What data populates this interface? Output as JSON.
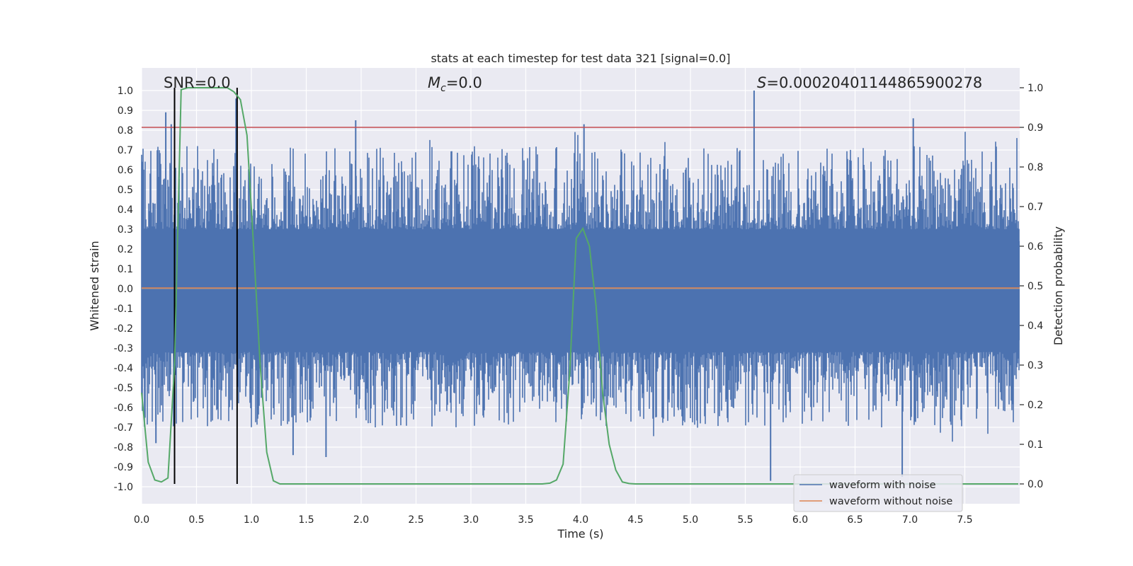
{
  "chart_data": {
    "type": "line",
    "title": "stats at each timestep for test data 321 [signal=0.0]",
    "xlabel": "Time (s)",
    "ylabel": "Whitened strain",
    "y2label": "Detection probability",
    "xlim": [
      0.0,
      8.0
    ],
    "ylim": [
      -1.08,
      1.08
    ],
    "y2lim": [
      -0.05,
      1.05
    ],
    "x_ticks": [
      "0.0",
      "0.5",
      "1.0",
      "1.5",
      "2.0",
      "2.5",
      "3.0",
      "3.5",
      "4.0",
      "4.5",
      "5.0",
      "5.5",
      "6.0",
      "6.5",
      "7.0",
      "7.5"
    ],
    "y_ticks": [
      "1.0",
      "0.9",
      "0.8",
      "0.7",
      "0.6",
      "0.5",
      "0.4",
      "0.3",
      "0.2",
      "0.1",
      "0.0",
      "-0.1",
      "-0.2",
      "-0.3",
      "-0.4",
      "-0.5",
      "-0.6",
      "-0.7",
      "-0.8",
      "-0.9",
      "-1.0"
    ],
    "y2_ticks": [
      "1.0",
      "0.9",
      "0.8",
      "0.7",
      "0.6",
      "0.5",
      "0.4",
      "0.3",
      "0.2",
      "0.1",
      "0.0"
    ],
    "annotations": {
      "snr": "SNR=0.0",
      "mc_symbol": "M",
      "mc_sub": "c",
      "mc_value": "=0.0",
      "s_symbol": "S",
      "s_value": "=0.00020401144865900278"
    },
    "threshold": {
      "value": 0.9,
      "axis": "y2",
      "color": "#c44e52"
    },
    "vlines": [
      0.3,
      0.87
    ],
    "legend": {
      "position": "lower-right",
      "entries": [
        {
          "label": "waveform with noise",
          "color": "#4c72b0"
        },
        {
          "label": "waveform without noise",
          "color": "#dd8452"
        }
      ]
    },
    "series": [
      {
        "name": "waveform with noise",
        "color": "#4c72b0",
        "axis": "y",
        "description": "dense whitened noise oscillating roughly between -0.95 and 0.97",
        "peaks_top": [
          [
            0.22,
            0.89
          ],
          [
            0.27,
            0.83
          ],
          [
            0.86,
            0.96
          ],
          [
            1.95,
            0.85
          ],
          [
            4.03,
            0.83
          ],
          [
            5.58,
            1.0
          ],
          [
            7.03,
            0.86
          ]
        ],
        "peaks_bottom": [
          [
            0.13,
            -0.78
          ],
          [
            1.38,
            -0.84
          ],
          [
            1.68,
            -0.85
          ],
          [
            5.73,
            -0.97
          ],
          [
            6.93,
            -0.95
          ]
        ]
      },
      {
        "name": "waveform without noise",
        "color": "#dd8452",
        "axis": "y",
        "value": 0.0
      },
      {
        "name": "detection probability",
        "color": "#55a868",
        "axis": "y2",
        "x": [
          0.0,
          0.06,
          0.12,
          0.18,
          0.24,
          0.3,
          0.36,
          0.42,
          0.48,
          0.55,
          0.62,
          0.7,
          0.78,
          0.84,
          0.9,
          0.96,
          1.02,
          1.08,
          1.14,
          1.2,
          1.26,
          1.5,
          2.0,
          2.5,
          3.0,
          3.5,
          3.65,
          3.72,
          3.78,
          3.84,
          3.9,
          3.96,
          4.02,
          4.08,
          4.14,
          4.2,
          4.26,
          4.32,
          4.38,
          4.44,
          4.5,
          5.0,
          6.0,
          7.0,
          8.0
        ],
        "y": [
          0.23,
          0.055,
          0.01,
          0.005,
          0.015,
          0.3,
          0.995,
          1.0,
          1.0,
          1.0,
          1.0,
          1.0,
          1.0,
          0.99,
          0.97,
          0.88,
          0.6,
          0.3,
          0.08,
          0.008,
          0.0,
          0.0,
          0.0,
          0.0,
          0.0,
          0.0,
          0.0,
          0.002,
          0.01,
          0.05,
          0.28,
          0.62,
          0.645,
          0.6,
          0.45,
          0.23,
          0.1,
          0.035,
          0.005,
          0.001,
          0.0,
          0.0,
          0.0,
          0.0,
          0.0
        ]
      }
    ]
  }
}
